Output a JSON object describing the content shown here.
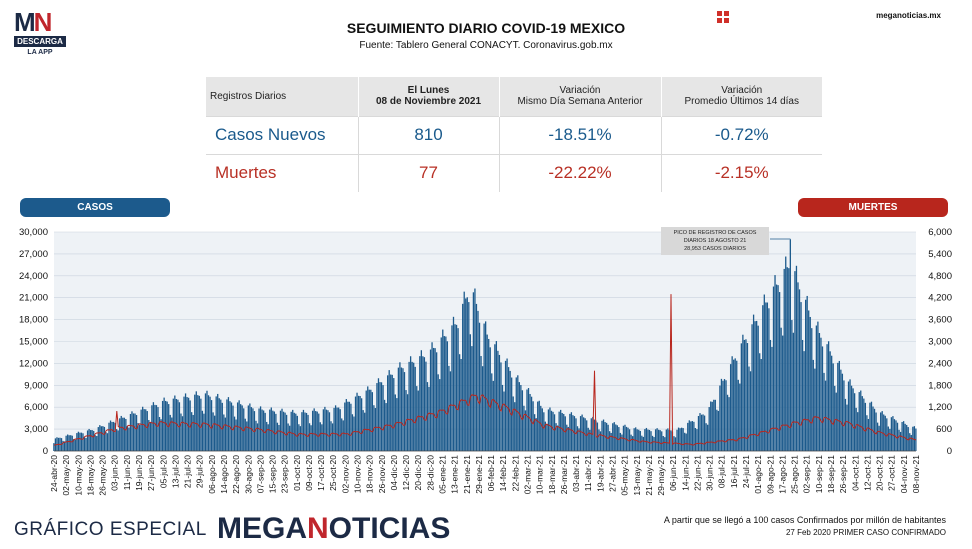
{
  "logo": {
    "mark_a": "M",
    "mark_b": "N",
    "band": "DESCARGA",
    "sub": "LA APP"
  },
  "header": {
    "title": "SEGUIMIENTO DIARIO COVID-19 MEXICO",
    "subtitle": "Fuente: Tablero General CONACYT. Coronavirus.gob.mx",
    "site": "meganoticias.mx"
  },
  "table": {
    "headers": [
      [
        "Registros Diarios"
      ],
      [
        "El Lunes",
        "08 de Noviembre 2021"
      ],
      [
        "Variación",
        "Mismo Día Semana Anterior"
      ],
      [
        "Variación",
        "Promedio Últimos 14 días"
      ]
    ],
    "rows": [
      {
        "label": "Casos Nuevos",
        "value": "810",
        "var_week": "-18.51%",
        "var_14": "-0.72%",
        "color": "#1a5a8c"
      },
      {
        "label": "Muertes",
        "value": "77",
        "var_week": "-22.22%",
        "var_14": "-2.15%",
        "color": "#b83025"
      }
    ]
  },
  "labels": {
    "casos": "CASOS",
    "muertes": "MUERTES"
  },
  "annotation": [
    "PICO DE REGISTRO DE CASOS",
    "DIARIOS 18 AGOSTO 21",
    "28,953 CASOS DIARIOS"
  ],
  "footer": {
    "left": "GRÁFICO ESPECIAL",
    "brand_a": "MEGA",
    "brand_b": "N",
    "brand_c": "OTICIAS",
    "note1": "A partir que se llegó a 100 casos Confirmados por millón de habitantes",
    "note2": "27 Feb 2020 PRIMER CASO CONFIRMADO"
  },
  "chart_data": {
    "type": "bar",
    "title": "",
    "x_range": [
      "2020-04-24",
      "2021-11-08"
    ],
    "x_tick_labels": [
      "24-abr-20",
      "02-may-20",
      "10-may-20",
      "18-may-20",
      "26-may-20",
      "03-jun-20",
      "11-jun-20",
      "19-jun-20",
      "27-jun-20",
      "05-jul-20",
      "13-jul-20",
      "21-jul-20",
      "29-jul-20",
      "06-ago-20",
      "14-ago-20",
      "22-ago-20",
      "30-ago-20",
      "07-sep-20",
      "15-sep-20",
      "23-sep-20",
      "01-oct-20",
      "09-oct-20",
      "17-oct-20",
      "25-oct-20",
      "02-nov-20",
      "10-nov-20",
      "18-nov-20",
      "26-nov-20",
      "04-dic-20",
      "12-dic-20",
      "20-dic-20",
      "28-dic-20",
      "05-ene-21",
      "13-ene-21",
      "21-ene-21",
      "29-ene-21",
      "06-feb-21",
      "14-feb-21",
      "22-feb-21",
      "02-mar-21",
      "10-mar-21",
      "18-mar-21",
      "26-mar-21",
      "03-abr-21",
      "11-abr-21",
      "19-abr-21",
      "27-abr-21",
      "05-may-21",
      "13-may-21",
      "21-may-21",
      "29-may-21",
      "06-jun-21",
      "14-jun-21",
      "22-jun-21",
      "30-jun-21",
      "08-jul-21",
      "16-jul-21",
      "24-jul-21",
      "01-ago-21",
      "09-ago-21",
      "17-ago-21",
      "25-ago-21",
      "02-sep-21",
      "10-sep-21",
      "18-sep-21",
      "26-sep-21",
      "04-oct-21",
      "12-oct-21",
      "20-oct-21",
      "27-oct-21",
      "04-nov-21",
      "08-nov-21"
    ],
    "y_left": {
      "min": 0,
      "max": 30000,
      "ticks": [
        0,
        3000,
        6000,
        9000,
        12000,
        15000,
        18000,
        21000,
        24000,
        27000,
        30000
      ]
    },
    "y_right": {
      "min": 0,
      "max": 6000,
      "ticks": [
        0,
        600,
        1200,
        1800,
        2400,
        3000,
        3600,
        4200,
        4800,
        5400,
        6000
      ]
    },
    "cases_anchors": [
      [
        "2020-04-24",
        1500
      ],
      [
        "2020-05-20",
        2700
      ],
      [
        "2020-06-10",
        4300
      ],
      [
        "2020-07-05",
        6200
      ],
      [
        "2020-07-31",
        7100
      ],
      [
        "2020-09-05",
        5200
      ],
      [
        "2020-10-01",
        4700
      ],
      [
        "2020-10-25",
        5300
      ],
      [
        "2020-11-15",
        7500
      ],
      [
        "2020-12-05",
        10200
      ],
      [
        "2020-12-25",
        12200
      ],
      [
        "2021-01-12",
        16000
      ],
      [
        "2021-01-21",
        20500
      ],
      [
        "2021-02-01",
        14500
      ],
      [
        "2021-02-20",
        9000
      ],
      [
        "2021-03-10",
        5200
      ],
      [
        "2021-04-10",
        4000
      ],
      [
        "2021-05-10",
        2700
      ],
      [
        "2021-06-05",
        2600
      ],
      [
        "2021-06-25",
        5000
      ],
      [
        "2021-07-15",
        12500
      ],
      [
        "2021-08-05",
        19500
      ],
      [
        "2021-08-18",
        23500
      ],
      [
        "2021-09-02",
        16000
      ],
      [
        "2021-09-25",
        8500
      ],
      [
        "2021-10-15",
        4800
      ],
      [
        "2021-11-08",
        2800
      ]
    ],
    "deaths_anchors": [
      [
        "2020-04-24",
        150
      ],
      [
        "2020-06-05",
        620
      ],
      [
        "2020-07-01",
        760
      ],
      [
        "2020-08-01",
        720
      ],
      [
        "2020-09-01",
        600
      ],
      [
        "2020-10-01",
        450
      ],
      [
        "2020-11-01",
        460
      ],
      [
        "2020-12-01",
        700
      ],
      [
        "2021-01-01",
        1050
      ],
      [
        "2021-01-25",
        1500
      ],
      [
        "2021-02-15",
        1150
      ],
      [
        "2021-03-10",
        700
      ],
      [
        "2021-04-10",
        450
      ],
      [
        "2021-05-15",
        250
      ],
      [
        "2021-06-15",
        180
      ],
      [
        "2021-07-15",
        320
      ],
      [
        "2021-08-20",
        750
      ],
      [
        "2021-09-05",
        900
      ],
      [
        "2021-09-25",
        750
      ],
      [
        "2021-10-15",
        500
      ],
      [
        "2021-11-08",
        300
      ]
    ],
    "spikes": [
      {
        "series": "cases",
        "date": "2021-08-18",
        "value": 28953
      },
      {
        "series": "deaths",
        "date": "2020-06-04",
        "value": 1092
      },
      {
        "series": "deaths",
        "date": "2021-04-12",
        "value": 2200
      },
      {
        "series": "deaths",
        "date": "2021-06-01",
        "value": 4300
      }
    ],
    "series": [
      {
        "name": "CASOS",
        "axis": "left",
        "color": "#1c5a8c"
      },
      {
        "name": "MUERTES",
        "axis": "right",
        "color": "#b8261d"
      }
    ]
  }
}
